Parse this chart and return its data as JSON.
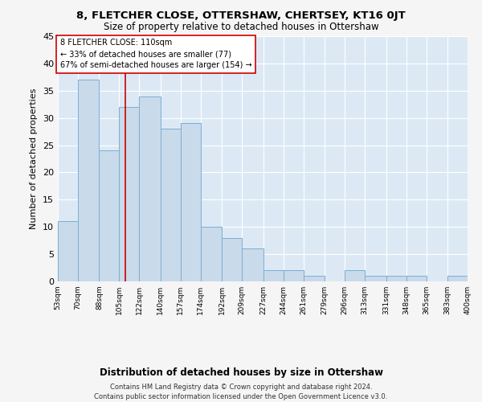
{
  "title": "8, FLETCHER CLOSE, OTTERSHAW, CHERTSEY, KT16 0JT",
  "subtitle": "Size of property relative to detached houses in Ottershaw",
  "xlabel": "Distribution of detached houses by size in Ottershaw",
  "ylabel": "Number of detached properties",
  "bins": [
    53,
    70,
    88,
    105,
    122,
    140,
    157,
    174,
    192,
    209,
    227,
    244,
    261,
    279,
    296,
    313,
    331,
    348,
    365,
    383,
    400
  ],
  "counts": [
    11,
    37,
    24,
    32,
    34,
    28,
    29,
    10,
    8,
    6,
    2,
    2,
    1,
    0,
    2,
    1,
    1,
    1,
    0,
    1
  ],
  "bar_color": "#c9daea",
  "bar_edge_color": "#7bafd4",
  "property_size": 110,
  "property_line_color": "#cc0000",
  "annotation_text": "8 FLETCHER CLOSE: 110sqm\n← 33% of detached houses are smaller (77)\n67% of semi-detached houses are larger (154) →",
  "annotation_box_color": "#ffffff",
  "annotation_box_edge": "#cc0000",
  "ylim": [
    0,
    45
  ],
  "yticks": [
    0,
    5,
    10,
    15,
    20,
    25,
    30,
    35,
    40,
    45
  ],
  "footer": "Contains HM Land Registry data © Crown copyright and database right 2024.\nContains public sector information licensed under the Open Government Licence v3.0.",
  "plot_bg_color": "#dce9f5",
  "grid_color": "#ffffff",
  "fig_bg_color": "#f5f5f5"
}
